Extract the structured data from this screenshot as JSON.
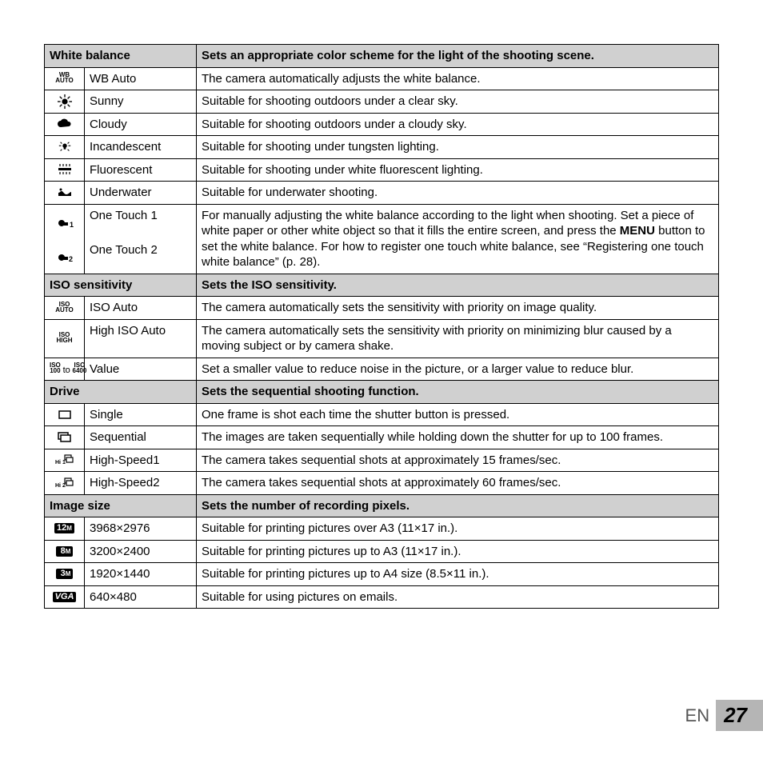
{
  "page_number": "27",
  "lang": "EN",
  "sections": [
    {
      "title": "White balance",
      "desc": "Sets an appropriate color scheme for the light of the shooting scene.",
      "rows": [
        {
          "icon": "wb-auto",
          "label": "WB Auto",
          "desc": "The camera automatically adjusts the white balance."
        },
        {
          "icon": "sunny",
          "label": "Sunny",
          "desc": "Suitable for shooting outdoors under a clear sky."
        },
        {
          "icon": "cloudy",
          "label": "Cloudy",
          "desc": "Suitable for shooting outdoors under a cloudy sky."
        },
        {
          "icon": "incandescent",
          "label": "Incandescent",
          "desc": "Suitable for shooting under tungsten lighting."
        },
        {
          "icon": "fluorescent",
          "label": "Fluorescent",
          "desc": "Suitable for shooting under white fluorescent lighting."
        },
        {
          "icon": "underwater",
          "label": "Underwater",
          "desc": "Suitable for underwater shooting."
        },
        {
          "icon": "onetouch1",
          "label": "One Touch 1",
          "desc": "For manually adjusting the white balance according to the light when shooting. Set a piece of white paper or other white object so that it fills the entire screen, and press the MENU button to set the white balance. For how to register one touch white balance, see “Registering one touch white balance” (p. 28)."
        },
        {
          "icon": "onetouch2",
          "label": "One Touch 2"
        }
      ]
    },
    {
      "title": "ISO sensitivity",
      "desc": "Sets the ISO sensitivity.",
      "rows": [
        {
          "icon": "iso-auto",
          "label": "ISO Auto",
          "desc": "The camera automatically sets the sensitivity with priority on image quality."
        },
        {
          "icon": "iso-high",
          "label": "High ISO Auto",
          "desc": "The camera automatically sets the sensitivity with priority on minimizing blur caused by a moving subject or by camera shake."
        },
        {
          "icon": "iso-range",
          "label": "Value",
          "desc": "Set a smaller value to reduce noise in the picture, or a larger value to reduce blur."
        }
      ]
    },
    {
      "title": "Drive",
      "desc": "Sets the sequential shooting function.",
      "rows": [
        {
          "icon": "single",
          "label": "Single",
          "desc": "One frame is shot each time the shutter button is pressed."
        },
        {
          "icon": "sequential",
          "label": "Sequential",
          "desc": "The images are taken sequentially while holding down the shutter for up to 100 frames."
        },
        {
          "icon": "hs1",
          "label": "High-Speed1",
          "desc": "The camera takes sequential shots at approximately 15 frames/sec."
        },
        {
          "icon": "hs2",
          "label": "High-Speed2",
          "desc": "The camera takes sequential shots at approximately 60 frames/sec."
        }
      ]
    },
    {
      "title": "Image size",
      "desc": "Sets the number of recording pixels.",
      "rows": [
        {
          "icon": "12m",
          "label": "3968×2976",
          "desc": "Suitable for printing pictures over A3 (11×17 in.)."
        },
        {
          "icon": "8m",
          "label": "3200×2400",
          "desc": "Suitable for printing pictures up to A3 (11×17 in.)."
        },
        {
          "icon": "3m",
          "label": "1920×1440",
          "desc": "Suitable for printing pictures up to A4 size (8.5×11 in.)."
        },
        {
          "icon": "vga",
          "label": "640×480",
          "desc": "Suitable for using pictures on emails."
        }
      ]
    }
  ],
  "iso_range_text": "to",
  "colors": {
    "header_bg": "#d0d0d0",
    "badge_bg": "#000000",
    "badge_fg": "#ffffff",
    "footer_tab": "#b5b5b5"
  }
}
